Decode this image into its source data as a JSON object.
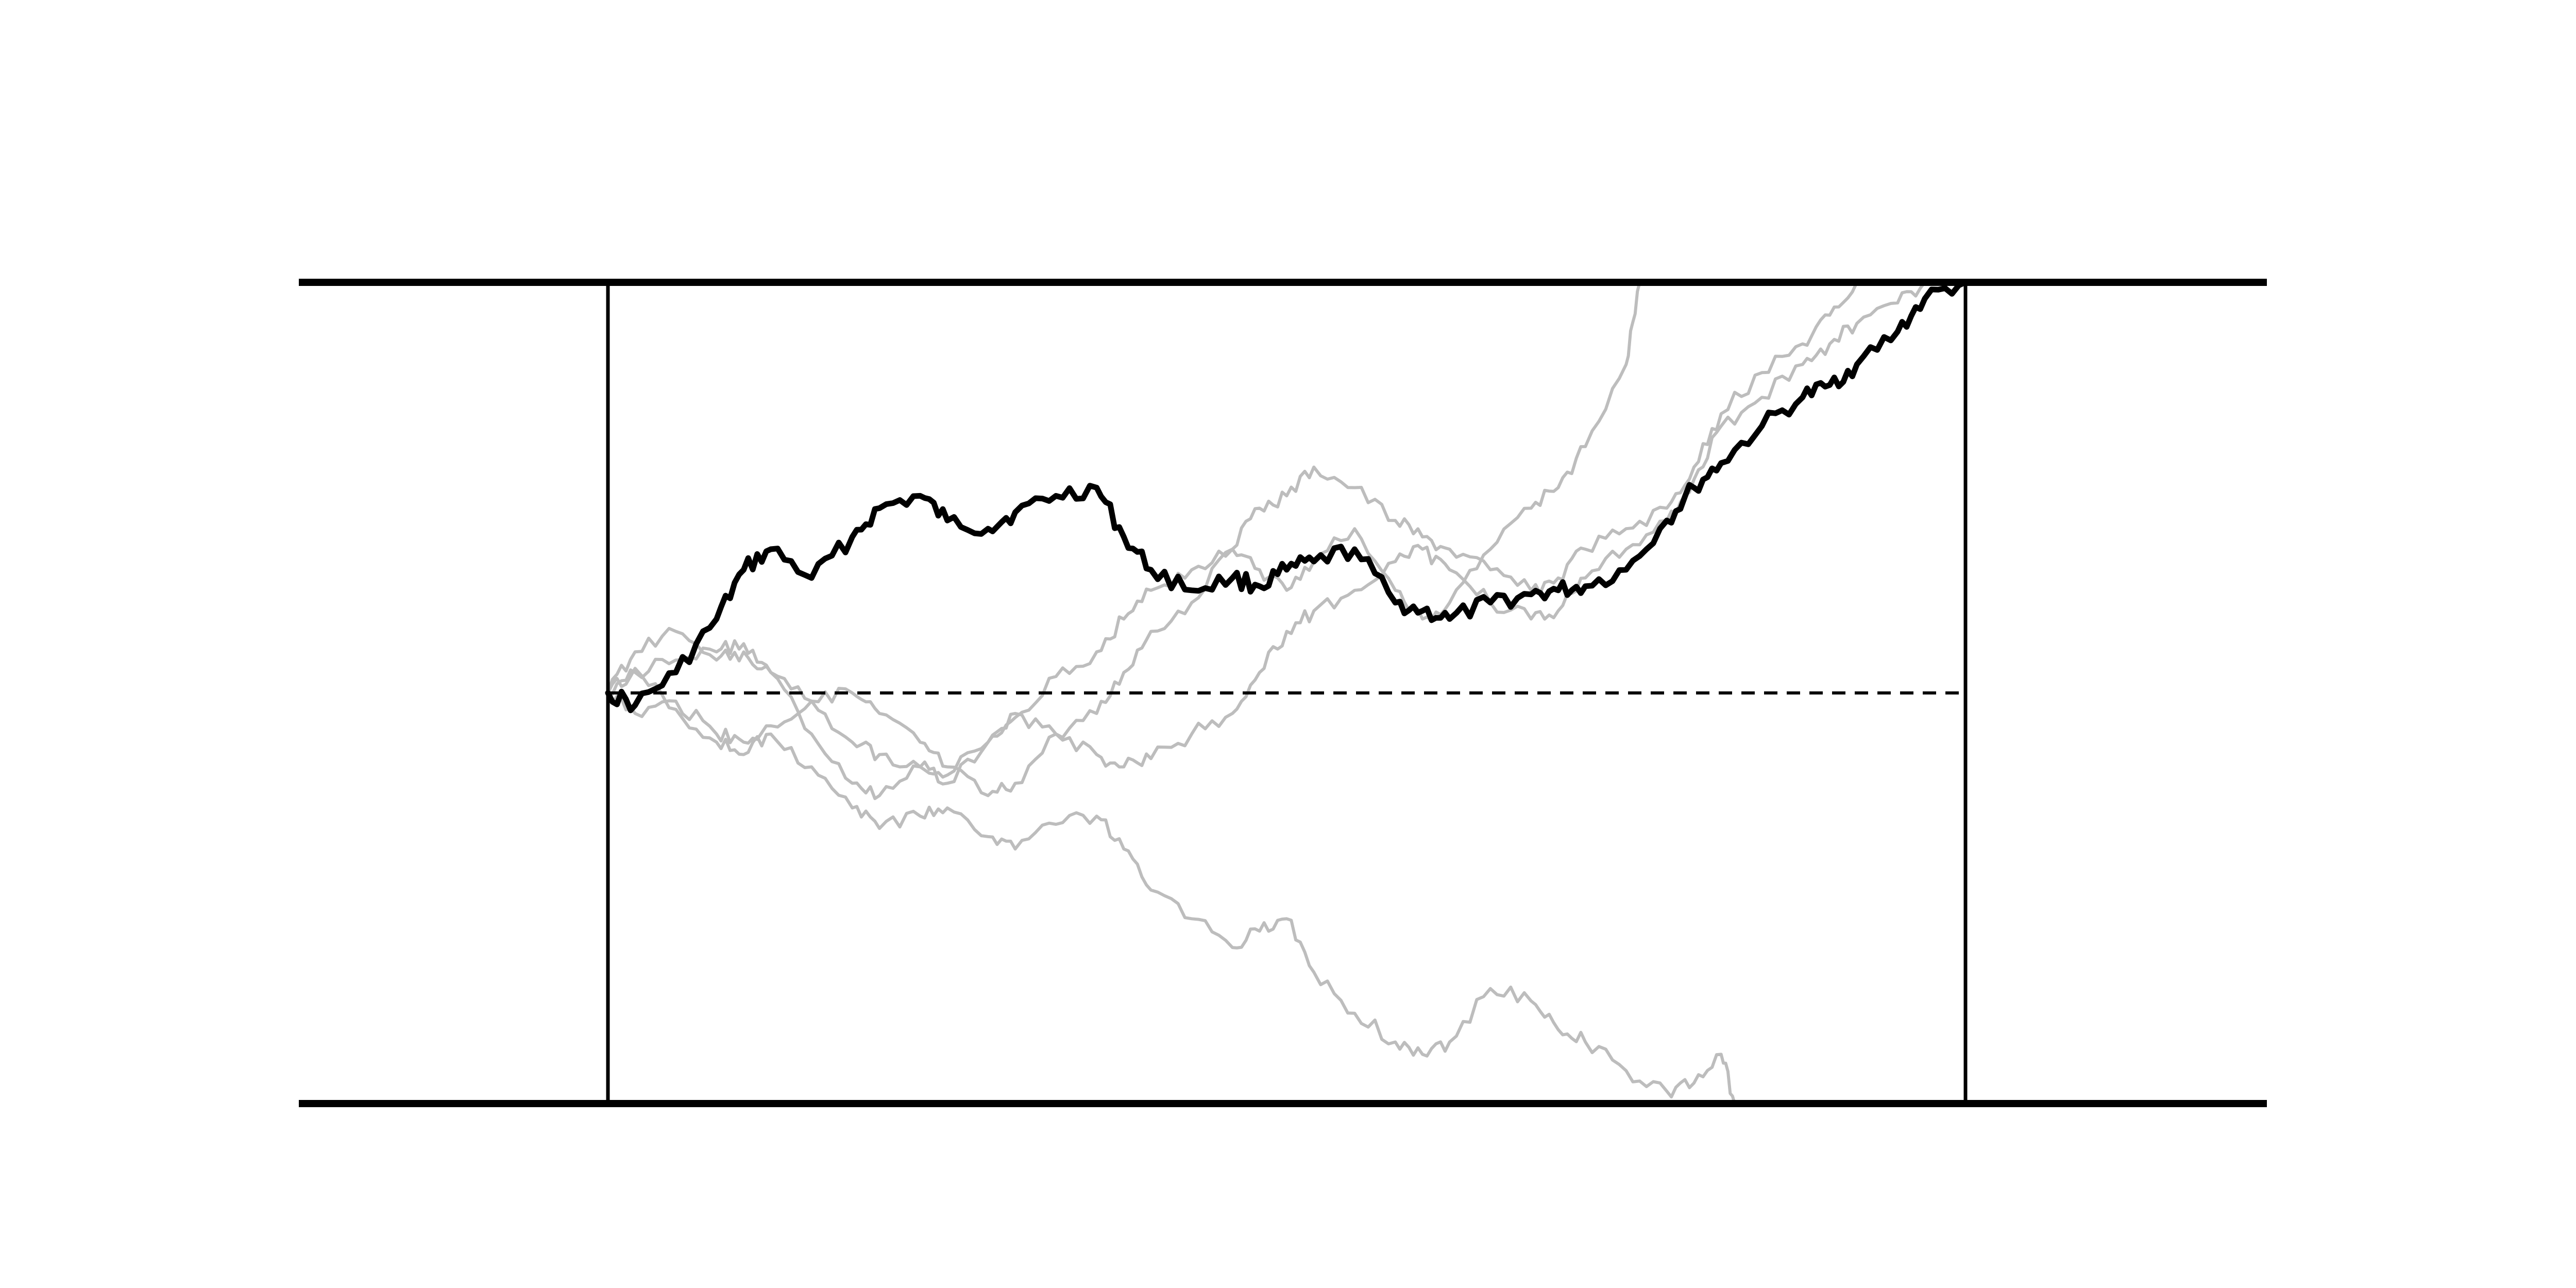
{
  "chart_data": {
    "type": "line",
    "title": "",
    "xlabel": "",
    "ylabel": "",
    "xlim": [
      0,
      1
    ],
    "ylim": [
      -1,
      1
    ],
    "grid": false,
    "reference_line_y": 0,
    "barriers": [
      1,
      -1
    ],
    "colors": {
      "background": "#ffffff",
      "highlight": "#000000",
      "background_paths": "#bdbdbd",
      "frame": "#000000"
    },
    "series": [
      {
        "emphasis": "highlight",
        "x": [
          0,
          0.02,
          0.05,
          0.08,
          0.1,
          0.12,
          0.15,
          0.18,
          0.2,
          0.23,
          0.25,
          0.28,
          0.3,
          0.33,
          0.36,
          0.38,
          0.4,
          0.43,
          0.46,
          0.48,
          0.5,
          0.52,
          0.55,
          0.58,
          0.6,
          0.62,
          0.65,
          0.68,
          0.7,
          0.72,
          0.75,
          0.78,
          0.8,
          0.82,
          0.85,
          0.88,
          0.9,
          0.92,
          0.95,
          0.97,
          1.0
        ],
        "y": [
          0,
          -0.03,
          0.05,
          0.18,
          0.3,
          0.35,
          0.28,
          0.38,
          0.45,
          0.48,
          0.42,
          0.4,
          0.44,
          0.48,
          0.5,
          0.38,
          0.3,
          0.25,
          0.28,
          0.26,
          0.3,
          0.32,
          0.35,
          0.22,
          0.2,
          0.18,
          0.22,
          0.24,
          0.25,
          0.26,
          0.3,
          0.42,
          0.5,
          0.56,
          0.65,
          0.72,
          0.75,
          0.8,
          0.88,
          0.96,
          1.0
        ]
      },
      {
        "emphasis": "background",
        "x": [
          0,
          0.02,
          0.05,
          0.08,
          0.1,
          0.12,
          0.15,
          0.18,
          0.2,
          0.23,
          0.25,
          0.28,
          0.3,
          0.33,
          0.36,
          0.38,
          0.4,
          0.43,
          0.46,
          0.48,
          0.5,
          0.52,
          0.55,
          0.58,
          0.6,
          0.62,
          0.65,
          0.68,
          0.7,
          0.72,
          0.75,
          0.78,
          0.8,
          0.82,
          0.83
        ],
        "y": [
          0,
          0.06,
          -0.04,
          -0.12,
          -0.15,
          -0.1,
          -0.18,
          -0.28,
          -0.33,
          -0.3,
          -0.28,
          -0.35,
          -0.38,
          -0.32,
          -0.3,
          -0.38,
          -0.48,
          -0.55,
          -0.62,
          -0.58,
          -0.55,
          -0.68,
          -0.78,
          -0.85,
          -0.88,
          -0.85,
          -0.72,
          -0.75,
          -0.82,
          -0.85,
          -0.92,
          -0.97,
          -0.95,
          -0.88,
          -1.0
        ]
      },
      {
        "emphasis": "background",
        "x": [
          0,
          0.02,
          0.05,
          0.08,
          0.1,
          0.12,
          0.15,
          0.18,
          0.2,
          0.23,
          0.25,
          0.28,
          0.3,
          0.33,
          0.36,
          0.38,
          0.4,
          0.43,
          0.46,
          0.48,
          0.5,
          0.52,
          0.55,
          0.58,
          0.6,
          0.62,
          0.65,
          0.68,
          0.7,
          0.72,
          0.75,
          0.76
        ],
        "y": [
          0,
          0.1,
          0.15,
          0.08,
          0.1,
          0.05,
          -0.1,
          -0.22,
          -0.25,
          -0.18,
          -0.22,
          -0.12,
          -0.06,
          0.04,
          0.1,
          0.18,
          0.25,
          0.3,
          0.35,
          0.3,
          0.25,
          0.32,
          0.4,
          0.25,
          0.18,
          0.22,
          0.35,
          0.45,
          0.5,
          0.6,
          0.8,
          1.0
        ]
      },
      {
        "emphasis": "background",
        "x": [
          0,
          0.02,
          0.05,
          0.08,
          0.1,
          0.12,
          0.15,
          0.18,
          0.2,
          0.23,
          0.25,
          0.28,
          0.3,
          0.33,
          0.36,
          0.38,
          0.4,
          0.43,
          0.46,
          0.48,
          0.5,
          0.52,
          0.55,
          0.58,
          0.6,
          0.62,
          0.65,
          0.68,
          0.7,
          0.72,
          0.75,
          0.78,
          0.8,
          0.82,
          0.85,
          0.88,
          0.9,
          0.92
        ],
        "y": [
          0,
          -0.05,
          -0.02,
          -0.1,
          -0.12,
          -0.08,
          -0.02,
          0.0,
          -0.05,
          -0.12,
          -0.18,
          -0.25,
          -0.22,
          -0.1,
          -0.05,
          0.05,
          0.15,
          0.22,
          0.35,
          0.45,
          0.48,
          0.55,
          0.5,
          0.42,
          0.38,
          0.35,
          0.3,
          0.25,
          0.28,
          0.35,
          0.4,
          0.45,
          0.55,
          0.68,
          0.78,
          0.85,
          0.92,
          1.0
        ]
      },
      {
        "emphasis": "background",
        "x": [
          0,
          0.02,
          0.05,
          0.08,
          0.1,
          0.12,
          0.15,
          0.18,
          0.2,
          0.23,
          0.25,
          0.28,
          0.3,
          0.33,
          0.36,
          0.38,
          0.4,
          0.43,
          0.46,
          0.48,
          0.5,
          0.52,
          0.55,
          0.58,
          0.6,
          0.62,
          0.65,
          0.68,
          0.7,
          0.72,
          0.75,
          0.78,
          0.8,
          0.82,
          0.85,
          0.88,
          0.9,
          0.92,
          0.95,
          0.97
        ],
        "y": [
          0,
          0.05,
          0.08,
          0.1,
          0.12,
          0.05,
          -0.02,
          -0.12,
          -0.15,
          -0.18,
          -0.2,
          -0.12,
          -0.05,
          -0.1,
          -0.15,
          -0.18,
          -0.16,
          -0.1,
          -0.05,
          0.05,
          0.15,
          0.2,
          0.25,
          0.32,
          0.35,
          0.3,
          0.22,
          0.18,
          0.2,
          0.28,
          0.35,
          0.42,
          0.52,
          0.65,
          0.72,
          0.8,
          0.85,
          0.9,
          0.95,
          1.0
        ]
      }
    ]
  }
}
